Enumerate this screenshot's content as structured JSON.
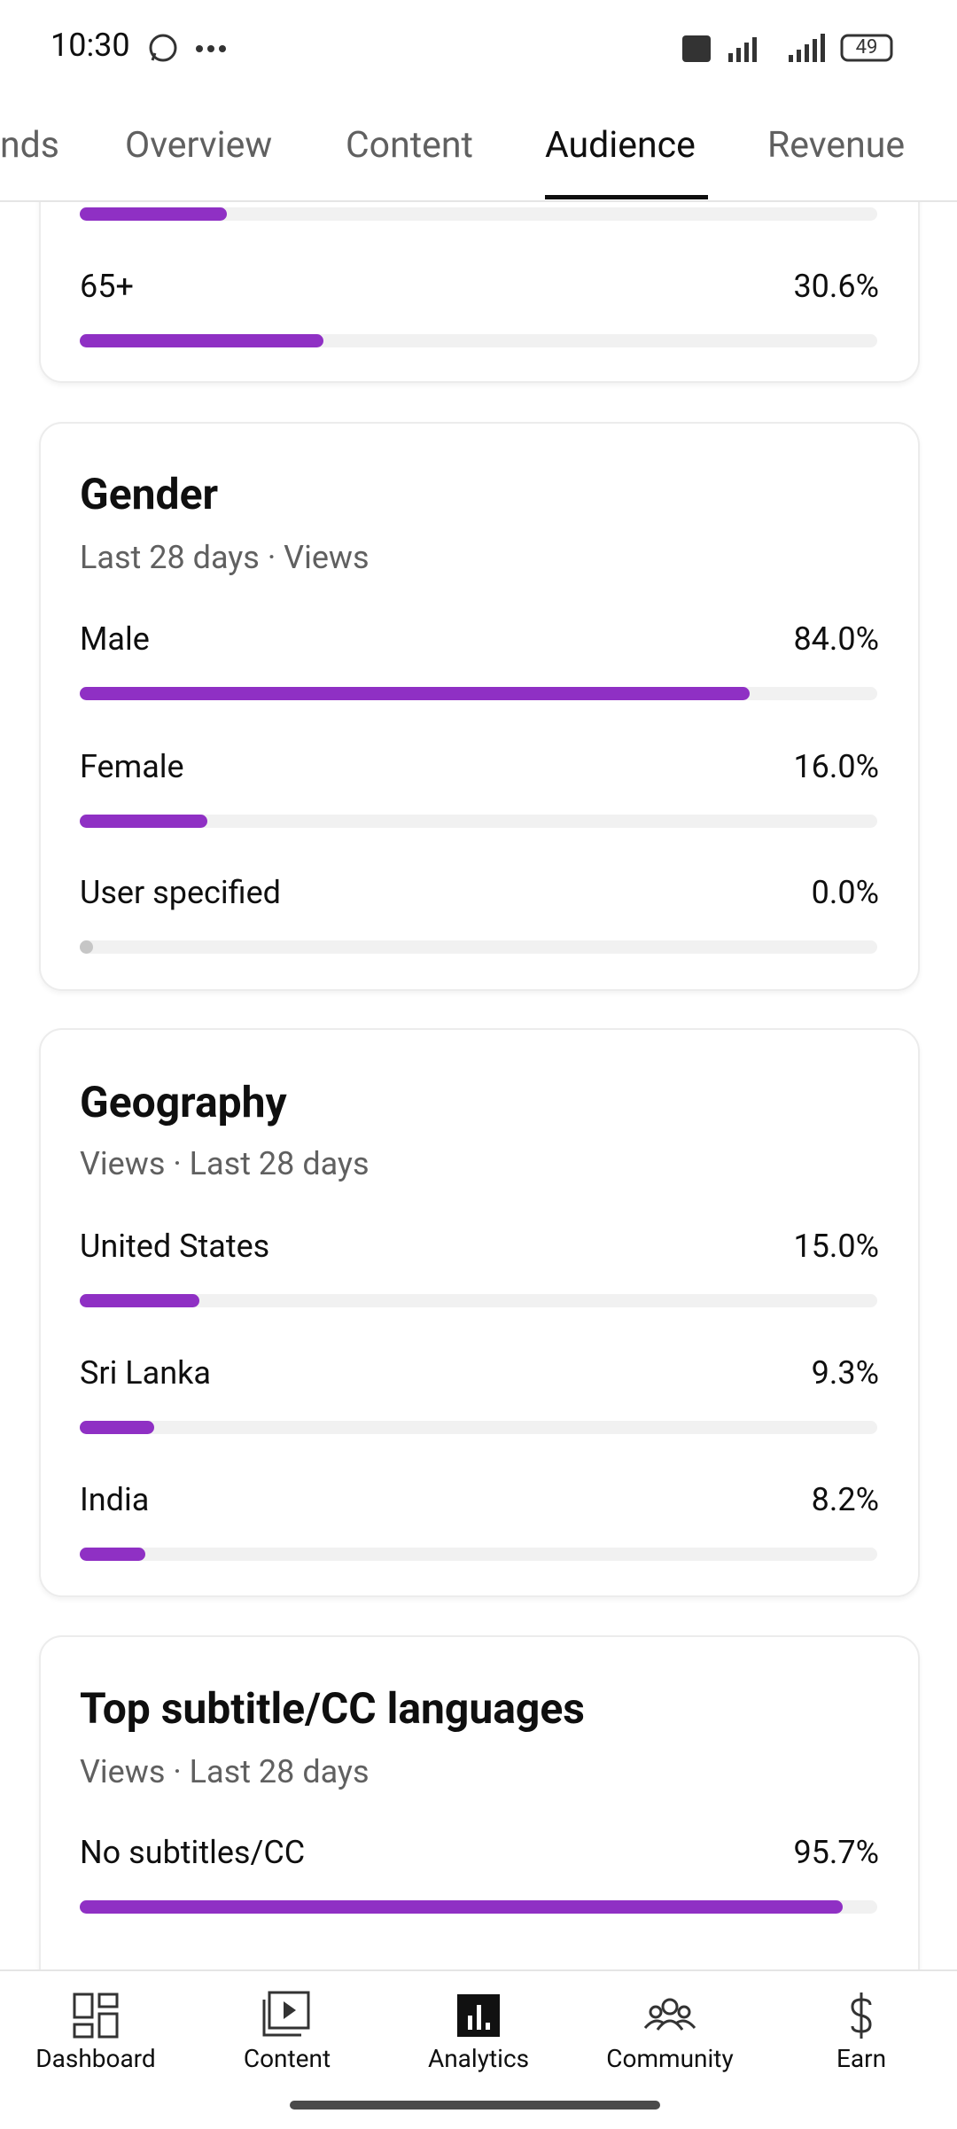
{
  "status_bar": {
    "time": "10:30",
    "battery": "49"
  },
  "tabs": [
    "nds",
    "Overview",
    "Content",
    "Audience",
    "Revenue"
  ],
  "active_tab": 3,
  "cards": [
    {
      "title": null,
      "subtitle": null,
      "rows": [
        {
          "label": null,
          "value": 18.4,
          "value_label": null
        },
        {
          "label": "65+",
          "value": 30.6,
          "value_label": "30.6%"
        }
      ]
    },
    {
      "title": "Gender",
      "subtitle": "Last 28 days · Views",
      "rows": [
        {
          "label": "Male",
          "value": 84.0,
          "value_label": "84.0%"
        },
        {
          "label": "Female",
          "value": 16.0,
          "value_label": "16.0%"
        },
        {
          "label": "User specified",
          "value": 0.0,
          "value_label": "0.0%"
        }
      ]
    },
    {
      "title": "Geography",
      "subtitle": "Views · Last 28 days",
      "rows": [
        {
          "label": "United States",
          "value": 15.0,
          "value_label": "15.0%"
        },
        {
          "label": "Sri Lanka",
          "value": 9.3,
          "value_label": "9.3%"
        },
        {
          "label": "India",
          "value": 8.2,
          "value_label": "8.2%"
        }
      ]
    },
    {
      "title": "Top subtitle/CC languages",
      "subtitle": "Views · Last 28 days",
      "rows": [
        {
          "label": "No subtitles/CC",
          "value": 95.7,
          "value_label": "95.7%"
        }
      ]
    }
  ],
  "bottom_nav": [
    "Dashboard",
    "Content",
    "Analytics",
    "Community",
    "Earn"
  ]
}
